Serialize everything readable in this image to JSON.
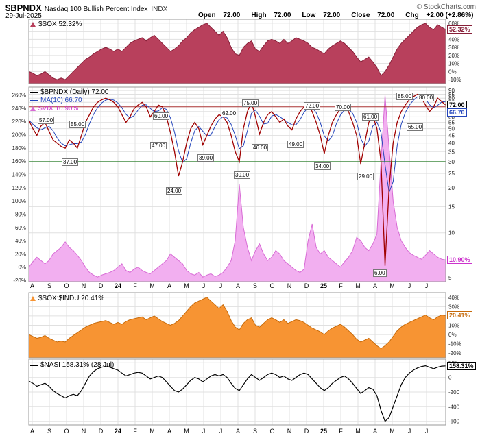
{
  "header": {
    "symbol": "$BPNDX",
    "name": "Nasdaq 100 Bullish Percent Index",
    "exchange": "INDX",
    "copyright": "© StockCharts.com",
    "date": "29-Jul-2025",
    "ohlc": [
      {
        "label": "Open",
        "value": "72.00"
      },
      {
        "label": "High",
        "value": "72.00"
      },
      {
        "label": "Low",
        "value": "72.00"
      },
      {
        "label": "Close",
        "value": "72.00"
      },
      {
        "label": "Chg",
        "value": "+2.00 (+2.86%)"
      }
    ]
  },
  "legends": {
    "sox": "$SOX 52.32%",
    "bpndx": "$BPNDX (Daily) 72.00",
    "ma": "MA(10) 66.70",
    "vix": "$VIX 10.90%",
    "soxindu": "$SOX:$INDU 20.41%",
    "nasi": "$NASI 158.31% (28 Jul)"
  },
  "colors": {
    "sox_fill": "#b8405c",
    "sox_stroke": "#871f38",
    "bpndx": "#a00000",
    "ma": "#2244bb",
    "vix_fill": "#f2aff0",
    "vix_stroke": "#d76ad4",
    "vix_text": "#cc33cc",
    "soxindu_fill": "#f79433",
    "soxindu_stroke": "#c66a0a",
    "nasi": "#000000",
    "grid": "#e0e0e0",
    "border": "#9a9a9a",
    "text": "#111111"
  },
  "chart_data": {
    "type": "line",
    "title": "$BPNDX Nasdaq 100 Bullish Percent Index with $SOX, $VIX, $SOX:$INDU and $NASI panels",
    "x_axis": {
      "labels": [
        "A",
        "S",
        "O",
        "N",
        "D",
        "24",
        "F",
        "M",
        "A",
        "M",
        "J",
        "J",
        "A",
        "S",
        "O",
        "N",
        "D",
        "25",
        "F",
        "M",
        "A",
        "M",
        "J",
        "J"
      ],
      "bold_indices": [
        5,
        17
      ],
      "range": "Aug 2023 - 29 Jul 2025"
    },
    "panels": [
      {
        "name": "$SOX",
        "style": "area",
        "last": 52.32,
        "badge": "52.32%",
        "badge_value": 52.32,
        "ylim": [
          -15,
          65
        ],
        "yticks": [
          60,
          50,
          40,
          30,
          20,
          10,
          0,
          -10
        ],
        "tick_suffix": "%",
        "values": [
          0,
          -2,
          -5,
          -3,
          0,
          -4,
          -8,
          -10,
          -8,
          -10,
          -5,
          0,
          5,
          10,
          15,
          18,
          22,
          25,
          28,
          30,
          28,
          25,
          28,
          25,
          30,
          35,
          38,
          40,
          42,
          38,
          42,
          45,
          40,
          35,
          30,
          25,
          28,
          32,
          38,
          42,
          48,
          52,
          55,
          58,
          60,
          55,
          50,
          45,
          50,
          42,
          30,
          22,
          20,
          30,
          35,
          38,
          28,
          25,
          32,
          38,
          40,
          38,
          35,
          40,
          35,
          38,
          42,
          40,
          38,
          35,
          30,
          28,
          25,
          22,
          28,
          32,
          35,
          38,
          35,
          30,
          25,
          18,
          12,
          15,
          18,
          12,
          5,
          -5,
          0,
          8,
          18,
          28,
          35,
          40,
          45,
          50,
          55,
          58,
          60,
          55,
          52,
          58,
          55,
          52.32
        ]
      },
      {
        "name": "$BPNDX",
        "style": "composite",
        "last": 72.0,
        "left_axis": {
          "ylim": [
            -22,
            272
          ],
          "yticks": [
            260,
            240,
            220,
            200,
            180,
            160,
            140,
            120,
            100,
            80,
            60,
            40,
            20,
            0,
            -20
          ],
          "suffix": "%"
        },
        "right_axis": {
          "scale": "log",
          "ylim": [
            4.7,
            95
          ],
          "yticks": [
            90,
            85,
            80,
            75,
            70,
            65,
            60,
            55,
            50,
            45,
            40,
            35,
            30,
            25,
            20,
            15,
            10,
            5
          ]
        },
        "ma_window": 3,
        "bpndx_values": [
          57,
          50,
          45,
          52,
          55,
          48,
          42,
          40,
          38,
          37,
          42,
          40,
          37,
          45,
          55,
          62,
          70,
          75,
          78,
          80,
          78,
          75,
          70,
          62,
          55,
          60,
          68,
          72,
          75,
          70,
          60,
          65,
          72,
          70,
          60,
          47,
          35,
          24,
          30,
          40,
          50,
          55,
          50,
          39,
          45,
          52,
          58,
          62,
          60,
          55,
          45,
          35,
          30,
          50,
          65,
          75,
          60,
          46,
          55,
          62,
          65,
          60,
          55,
          58,
          52,
          49,
          58,
          65,
          70,
          72,
          65,
          55,
          45,
          34,
          45,
          55,
          62,
          68,
          70,
          65,
          55,
          45,
          29,
          40,
          55,
          61,
          50,
          30,
          6,
          20,
          40,
          55,
          65,
          72,
          78,
          82,
          85,
          80,
          72,
          65,
          70,
          80,
          76,
          72
        ],
        "vix_values": [
          0,
          8,
          15,
          10,
          5,
          10,
          20,
          25,
          30,
          38,
          30,
          25,
          18,
          10,
          0,
          -8,
          -12,
          -15,
          -12,
          -10,
          -8,
          -5,
          0,
          5,
          -5,
          -8,
          -3,
          0,
          -5,
          -8,
          -10,
          -5,
          0,
          5,
          10,
          20,
          15,
          10,
          5,
          -5,
          -10,
          -12,
          -8,
          -15,
          -12,
          -10,
          -14,
          -12,
          -8,
          0,
          10,
          40,
          125,
          60,
          30,
          10,
          25,
          35,
          20,
          10,
          15,
          25,
          20,
          10,
          5,
          0,
          -5,
          -8,
          -3,
          40,
          65,
          30,
          20,
          25,
          15,
          10,
          5,
          0,
          8,
          15,
          25,
          45,
          40,
          30,
          25,
          35,
          50,
          160,
          260,
          180,
          100,
          60,
          40,
          30,
          22,
          18,
          15,
          12,
          18,
          25,
          20,
          15,
          12,
          10.9
        ],
        "ref_lines": [
          {
            "value": 70,
            "color": "#b03a3a",
            "meaning": "overbought"
          },
          {
            "value": 30,
            "color": "#1f7a1f",
            "meaning": "oversold"
          }
        ],
        "annotations": [
          {
            "text": "57.00",
            "fx": 0.04,
            "fy": 0.17
          },
          {
            "text": "55.00",
            "fx": 0.115,
            "fy": 0.19
          },
          {
            "text": "37.00",
            "fx": 0.097,
            "fy": 0.385
          },
          {
            "text": "47.00",
            "fx": 0.31,
            "fy": 0.3
          },
          {
            "text": "60.00",
            "fx": 0.315,
            "fy": 0.148
          },
          {
            "text": "24.00",
            "fx": 0.347,
            "fy": 0.53
          },
          {
            "text": "39.00",
            "fx": 0.422,
            "fy": 0.364
          },
          {
            "text": "62.00",
            "fx": 0.478,
            "fy": 0.134
          },
          {
            "text": "30.00",
            "fx": 0.51,
            "fy": 0.449
          },
          {
            "text": "75.00",
            "fx": 0.53,
            "fy": 0.081
          },
          {
            "text": "46.00",
            "fx": 0.552,
            "fy": 0.311
          },
          {
            "text": "49.00",
            "fx": 0.638,
            "fy": 0.293
          },
          {
            "text": "72.00",
            "fx": 0.678,
            "fy": 0.095
          },
          {
            "text": "34.00",
            "fx": 0.703,
            "fy": 0.406
          },
          {
            "text": "70.00",
            "fx": 0.752,
            "fy": 0.102
          },
          {
            "text": "29.00",
            "fx": 0.806,
            "fy": 0.456
          },
          {
            "text": "61.00",
            "fx": 0.818,
            "fy": 0.152
          },
          {
            "text": "6.00",
            "fx": 0.843,
            "fy": 0.954
          },
          {
            "text": "85.00",
            "fx": 0.9,
            "fy": 0.046
          },
          {
            "text": "65.00",
            "fx": 0.925,
            "fy": 0.205
          },
          {
            "text": "80.00",
            "fx": 0.95,
            "fy": 0.053
          }
        ],
        "badges": [
          {
            "text": "72.00",
            "axis": "right",
            "value": 72,
            "color": "#000000"
          },
          {
            "text": "66.70",
            "axis": "right",
            "value": 66.7,
            "color": "#2244bb"
          },
          {
            "text": "10.90%",
            "axis": "left",
            "value": 10.9,
            "color": "#cc33cc"
          }
        ]
      },
      {
        "name": "$SOX:$INDU",
        "style": "area",
        "last": 20.41,
        "badge": "20.41%",
        "badge_value": 20.41,
        "ylim": [
          -25,
          45
        ],
        "yticks": [
          40,
          30,
          20,
          10,
          0,
          -10,
          -20
        ],
        "tick_suffix": "%",
        "values": [
          0,
          -2,
          -4,
          -3,
          -1,
          -4,
          -6,
          -8,
          -7,
          -8,
          -4,
          -1,
          2,
          5,
          8,
          10,
          12,
          13,
          14,
          15,
          13,
          11,
          13,
          11,
          14,
          16,
          17,
          18,
          19,
          16,
          18,
          20,
          17,
          14,
          12,
          10,
          12,
          15,
          20,
          25,
          30,
          34,
          36,
          38,
          40,
          36,
          32,
          28,
          32,
          25,
          15,
          8,
          5,
          12,
          16,
          18,
          10,
          8,
          12,
          16,
          18,
          16,
          13,
          16,
          12,
          14,
          16,
          15,
          13,
          10,
          7,
          5,
          3,
          0,
          4,
          7,
          9,
          11,
          8,
          4,
          0,
          -5,
          -8,
          -6,
          -4,
          -8,
          -12,
          -15,
          -12,
          -8,
          -2,
          4,
          8,
          11,
          13,
          15,
          17,
          19,
          21,
          18,
          16,
          19,
          21,
          20.41
        ]
      },
      {
        "name": "$NASI",
        "style": "line",
        "last": 158.31,
        "badge": "158.31%",
        "badge_value": 158.31,
        "ylim": [
          -650,
          250
        ],
        "yticks": [
          200,
          0,
          -200,
          -400,
          -600
        ],
        "tick_suffix": "",
        "values": [
          -50,
          -80,
          -120,
          -100,
          -80,
          -120,
          -180,
          -220,
          -250,
          -280,
          -250,
          -230,
          -250,
          -180,
          -80,
          20,
          80,
          120,
          140,
          150,
          140,
          120,
          100,
          60,
          20,
          40,
          60,
          70,
          60,
          20,
          -20,
          0,
          20,
          0,
          -60,
          -120,
          -180,
          -200,
          -160,
          -100,
          -40,
          0,
          -20,
          -60,
          -20,
          20,
          40,
          20,
          40,
          0,
          -80,
          -150,
          -180,
          -100,
          -20,
          40,
          0,
          -40,
          0,
          40,
          60,
          40,
          0,
          20,
          -20,
          -40,
          0,
          40,
          60,
          40,
          -20,
          -80,
          -140,
          -180,
          -140,
          -80,
          -40,
          0,
          20,
          -20,
          -80,
          -150,
          -220,
          -180,
          -140,
          -160,
          -250,
          -450,
          -600,
          -550,
          -400,
          -250,
          -100,
          0,
          60,
          100,
          130,
          150,
          160,
          140,
          120,
          140,
          155,
          158.3
        ]
      }
    ]
  }
}
